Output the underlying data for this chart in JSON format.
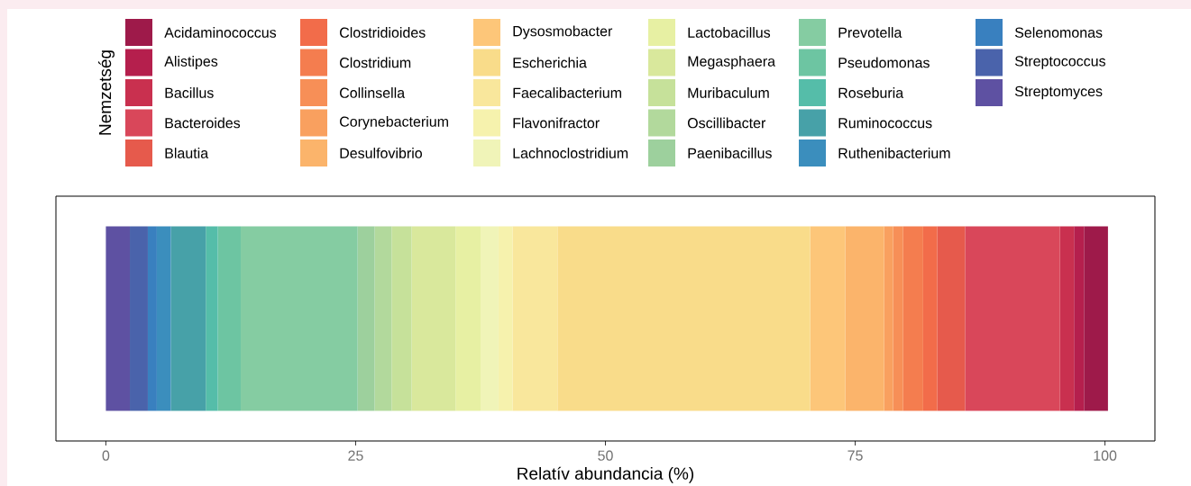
{
  "chart_data": {
    "type": "bar",
    "orientation": "horizontal",
    "stacked": true,
    "categories": [
      null
    ],
    "xlabel": "Relatív abundancia (%)",
    "legend_title": "Nemzetség",
    "legend": "top",
    "xlim": [
      -5,
      105
    ],
    "xticks": [
      0,
      25,
      50,
      75,
      100
    ],
    "series": [
      {
        "name": "Streptomyces",
        "color": "#5e51a2",
        "values": [
          2.4
        ]
      },
      {
        "name": "Streptococcus",
        "color": "#4a63ab",
        "values": [
          1.8
        ]
      },
      {
        "name": "Selenomonas",
        "color": "#3980bf",
        "values": [
          0.9
        ]
      },
      {
        "name": "Ruthenibacterium",
        "color": "#3b8ebd",
        "values": [
          1.4
        ]
      },
      {
        "name": "Ruminococcus",
        "color": "#47a1a8",
        "values": [
          3.5
        ]
      },
      {
        "name": "Roseburia",
        "color": "#55bda9",
        "values": [
          1.2
        ]
      },
      {
        "name": "Pseudomonas",
        "color": "#6dc5a2",
        "values": [
          2.3
        ]
      },
      {
        "name": "Prevotella",
        "color": "#85cca2",
        "values": [
          11.7
        ]
      },
      {
        "name": "Paenibacillus",
        "color": "#9dd09d",
        "values": [
          1.7
        ]
      },
      {
        "name": "Oscillibacter",
        "color": "#b2d99c",
        "values": [
          1.7
        ]
      },
      {
        "name": "Muribaculum",
        "color": "#c6e19a",
        "values": [
          2.0
        ]
      },
      {
        "name": "Megasphaera",
        "color": "#d9e89c",
        "values": [
          4.4
        ]
      },
      {
        "name": "Lactobacillus",
        "color": "#e7f0a3",
        "values": [
          2.5
        ]
      },
      {
        "name": "Lachnoclostridium",
        "color": "#f0f4b8",
        "values": [
          1.8
        ]
      },
      {
        "name": "Flavonifractor",
        "color": "#f6f2ad",
        "values": [
          1.4
        ]
      },
      {
        "name": "Faecalibacterium",
        "color": "#f9e79c",
        "values": [
          4.5
        ]
      },
      {
        "name": "Escherichia",
        "color": "#f9dc8a",
        "values": [
          25.3
        ]
      },
      {
        "name": "Dysosmobacter",
        "color": "#fdc679",
        "values": [
          3.5
        ]
      },
      {
        "name": "Desulfovibrio",
        "color": "#fbb46b",
        "values": [
          3.9
        ]
      },
      {
        "name": "Corynebacterium",
        "color": "#f9a05f",
        "values": [
          0.9
        ]
      },
      {
        "name": "Collinsella",
        "color": "#f78f57",
        "values": [
          1.0
        ]
      },
      {
        "name": "Clostridium",
        "color": "#f47d4f",
        "values": [
          2.0
        ]
      },
      {
        "name": "Clostridioides",
        "color": "#f26c4a",
        "values": [
          1.4
        ]
      },
      {
        "name": "Blautia",
        "color": "#e65a4c",
        "values": [
          2.8
        ]
      },
      {
        "name": "Bacteroides",
        "color": "#d9475a",
        "values": [
          9.5
        ]
      },
      {
        "name": "Bacillus",
        "color": "#c9304f",
        "values": [
          1.4
        ]
      },
      {
        "name": "Alistipes",
        "color": "#b51f4d",
        "values": [
          1.0
        ]
      },
      {
        "name": "Acidaminococcus",
        "color": "#9e1a4a",
        "values": [
          2.4
        ]
      }
    ]
  }
}
